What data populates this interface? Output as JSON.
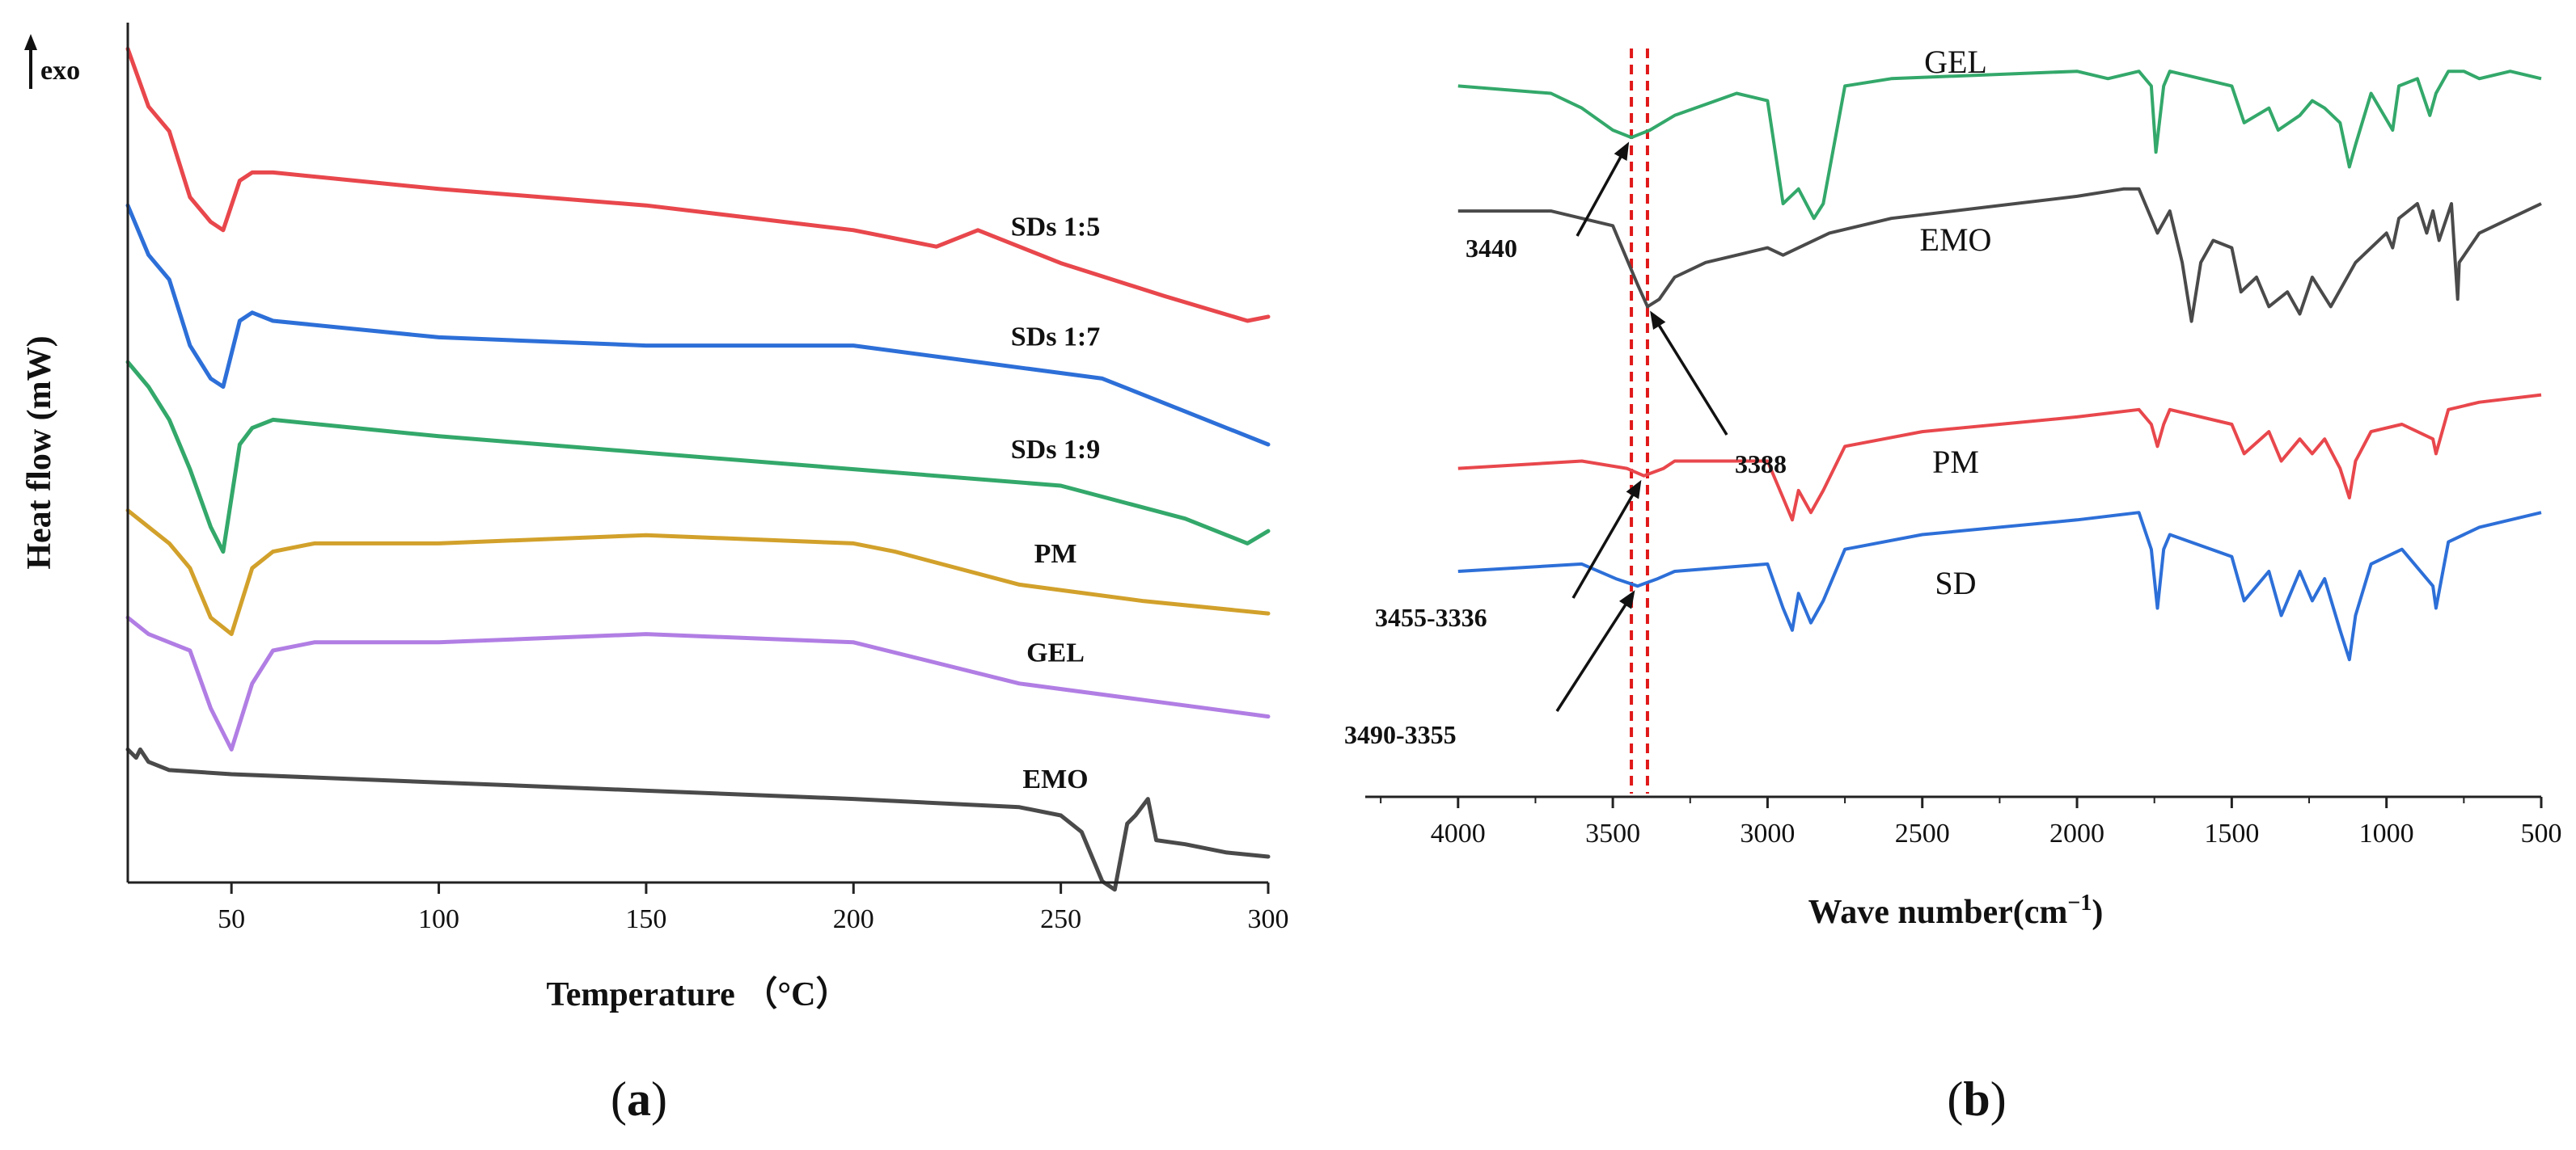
{
  "chart_data": [
    {
      "panel": "a",
      "type": "line",
      "title": "",
      "panel_label": "(a)",
      "caption_open": "(",
      "caption_letter": "a",
      "caption_close": ")",
      "xlabel": "Temperature （°C）",
      "ylabel": "Heat flow (mW)",
      "exo_label": "exo",
      "xlim": [
        25,
        300
      ],
      "ylim": [
        0,
        100
      ],
      "xticks": [
        50,
        100,
        150,
        200,
        250,
        300
      ],
      "xtick_labels": [
        "50",
        "100",
        "150",
        "200",
        "250",
        "300"
      ],
      "series": [
        {
          "name": "SDs 1:5",
          "color": "#e8474c",
          "x": [
            25,
            30,
            35,
            40,
            45,
            48,
            52,
            55,
            60,
            80,
            100,
            150,
            200,
            220,
            230,
            250,
            275,
            295,
            300
          ],
          "y": [
            98,
            91,
            88,
            80,
            77,
            76,
            82,
            83,
            83,
            82,
            81,
            79,
            76,
            74,
            76,
            72,
            68,
            65,
            65.5
          ]
        },
        {
          "name": "SDs 1:7",
          "color": "#2d6fd8",
          "x": [
            25,
            30,
            35,
            40,
            45,
            48,
            52,
            55,
            60,
            80,
            100,
            150,
            200,
            230,
            260,
            280,
            300
          ],
          "y": [
            79,
            73,
            70,
            62,
            58,
            57,
            65,
            66,
            65,
            64,
            63,
            62,
            62,
            60,
            58,
            54,
            50
          ]
        },
        {
          "name": "SDs 1:9",
          "color": "#33a86a",
          "x": [
            25,
            30,
            35,
            40,
            45,
            48,
            52,
            55,
            60,
            80,
            100,
            150,
            200,
            250,
            280,
            290,
            295,
            300
          ],
          "y": [
            60,
            57,
            53,
            47,
            40,
            37,
            50,
            52,
            53,
            52,
            51,
            49,
            47,
            45,
            41,
            39,
            38,
            39.5
          ]
        },
        {
          "name": "PM",
          "color": "#d2a12b",
          "x": [
            25,
            30,
            35,
            40,
            45,
            50,
            55,
            60,
            70,
            100,
            150,
            200,
            210,
            240,
            270,
            300
          ],
          "y": [
            42,
            40,
            38,
            35,
            29,
            27,
            35,
            37,
            38,
            38,
            39,
            38,
            37,
            33,
            31,
            29.5
          ]
        },
        {
          "name": "GEL",
          "color": "#b17ee4",
          "x": [
            25,
            30,
            35,
            40,
            45,
            50,
            55,
            60,
            70,
            100,
            150,
            200,
            240,
            270,
            300
          ],
          "y": [
            29,
            27,
            26,
            25,
            18,
            13,
            21,
            25,
            26,
            26,
            27,
            26,
            21,
            19,
            17
          ]
        },
        {
          "name": "EMO",
          "color": "#4a4a4a",
          "x": [
            25,
            27,
            28,
            30,
            35,
            50,
            100,
            150,
            200,
            240,
            250,
            255,
            260,
            263,
            266,
            268,
            271,
            273,
            280,
            290,
            300
          ],
          "y": [
            13,
            12,
            13,
            11.5,
            10.5,
            10,
            9,
            8,
            7,
            6,
            5,
            3,
            -3,
            -4,
            4,
            5,
            7,
            2,
            1.5,
            0.5,
            0
          ]
        }
      ]
    },
    {
      "panel": "b",
      "type": "line",
      "title": "",
      "panel_label": "(b)",
      "caption_open": "(",
      "caption_letter": "b",
      "caption_close": ")",
      "xlabel": "Wave number(cm",
      "xlabel_sup": "−1",
      "xlabel_close": ")",
      "ylabel": "",
      "xlim": [
        4300,
        500
      ],
      "ylim": [
        0,
        100
      ],
      "xticks": [
        4000,
        3500,
        3000,
        2500,
        2000,
        1500,
        1000,
        500
      ],
      "xtick_labels": [
        "4000",
        "3500",
        "3000",
        "2500",
        "2000",
        "1500",
        "1000",
        "500"
      ],
      "reference_lines": [
        3440,
        3388
      ],
      "series": [
        {
          "name": "GEL",
          "color": "#33a86a",
          "x": [
            4000,
            3700,
            3600,
            3500,
            3440,
            3380,
            3300,
            3100,
            3000,
            2950,
            2900,
            2850,
            2820,
            2750,
            2600,
            2000,
            1900,
            1800,
            1760,
            1745,
            1720,
            1700,
            1500,
            1460,
            1380,
            1350,
            1280,
            1240,
            1200,
            1150,
            1120,
            1100,
            1050,
            980,
            960,
            900,
            860,
            840,
            800,
            750,
            700,
            600,
            500
          ],
          "y": [
            96,
            95,
            93,
            90,
            89,
            90,
            92,
            95,
            94,
            80,
            82,
            78,
            80,
            96,
            97,
            98,
            97,
            98,
            96,
            87,
            96,
            98,
            96,
            91,
            93,
            90,
            92,
            94,
            93,
            91,
            85,
            88,
            95,
            90,
            96,
            97,
            92,
            95,
            98,
            98,
            97,
            98,
            97
          ]
        },
        {
          "name": "EMO",
          "color": "#4a4a4a",
          "x": [
            4000,
            3700,
            3600,
            3500,
            3450,
            3420,
            3388,
            3350,
            3300,
            3200,
            3000,
            2950,
            2900,
            2800,
            2600,
            2000,
            1850,
            1800,
            1760,
            1740,
            1700,
            1660,
            1630,
            1600,
            1560,
            1500,
            1470,
            1420,
            1380,
            1320,
            1280,
            1240,
            1180,
            1100,
            1050,
            1000,
            980,
            960,
            900,
            870,
            850,
            830,
            790,
            770,
            765,
            700,
            600,
            500
          ],
          "y": [
            79,
            79,
            78,
            77,
            72,
            69,
            66,
            67,
            70,
            72,
            74,
            73,
            74,
            76,
            78,
            81,
            82,
            82,
            78,
            76,
            79,
            72,
            64,
            72,
            75,
            74,
            68,
            70,
            66,
            68,
            65,
            70,
            66,
            72,
            74,
            76,
            74,
            78,
            80,
            76,
            79,
            75,
            80,
            67,
            72,
            76,
            78,
            80
          ]
        },
        {
          "name": "PM",
          "color": "#e8474c",
          "x": [
            4000,
            3600,
            3455,
            3400,
            3336,
            3300,
            3000,
            2950,
            2920,
            2900,
            2860,
            2820,
            2750,
            2500,
            2000,
            1800,
            1760,
            1740,
            1720,
            1700,
            1500,
            1460,
            1380,
            1340,
            1280,
            1240,
            1200,
            1150,
            1120,
            1100,
            1050,
            950,
            850,
            840,
            800,
            700,
            500
          ],
          "y": [
            44,
            45,
            44,
            43,
            44,
            45,
            45,
            40,
            37,
            41,
            38,
            41,
            47,
            49,
            51,
            52,
            50,
            47,
            50,
            52,
            50,
            46,
            49,
            45,
            48,
            46,
            48,
            44,
            40,
            45,
            49,
            50,
            48,
            46,
            52,
            53,
            54
          ]
        },
        {
          "name": "SD",
          "color": "#2d6fd8",
          "x": [
            4000,
            3600,
            3490,
            3420,
            3355,
            3300,
            3000,
            2950,
            2920,
            2900,
            2860,
            2820,
            2750,
            2500,
            2000,
            1800,
            1760,
            1740,
            1720,
            1700,
            1500,
            1460,
            1380,
            1340,
            1280,
            1240,
            1200,
            1150,
            1120,
            1100,
            1050,
            950,
            850,
            840,
            800,
            700,
            500
          ],
          "y": [
            30,
            31,
            29,
            28,
            29,
            30,
            31,
            25,
            22,
            27,
            23,
            26,
            33,
            35,
            37,
            38,
            33,
            25,
            33,
            35,
            32,
            26,
            30,
            24,
            30,
            26,
            29,
            22,
            18,
            24,
            31,
            33,
            28,
            25,
            34,
            36,
            38
          ]
        }
      ],
      "peak_annotations": [
        {
          "label": "3440",
          "series": "GEL",
          "x": 3440
        },
        {
          "label": "3388",
          "series": "EMO",
          "x": 3388
        },
        {
          "label": "3455-3336",
          "series": "PM",
          "x": 3400
        },
        {
          "label": "3490-3355",
          "series": "SD",
          "x": 3420
        }
      ]
    }
  ]
}
